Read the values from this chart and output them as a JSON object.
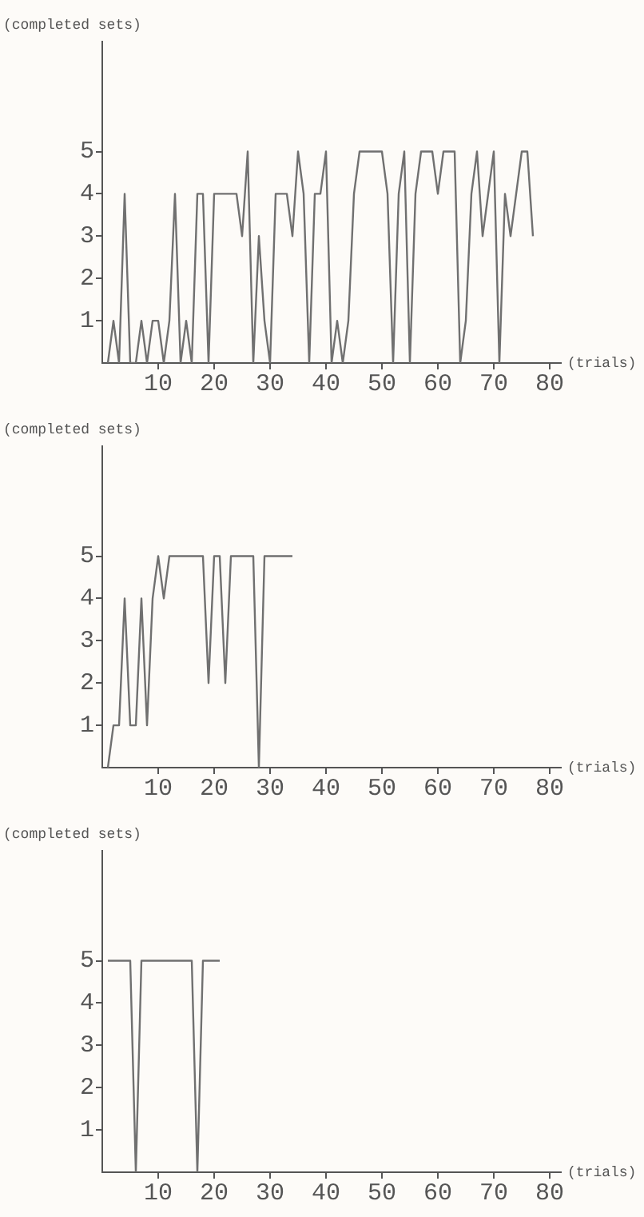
{
  "chart_data": [
    {
      "type": "line",
      "xlabel": "(trials)",
      "ylabel": "(completed sets)",
      "x": [
        1,
        2,
        3,
        4,
        5,
        6,
        7,
        8,
        9,
        10,
        11,
        12,
        13,
        14,
        15,
        16,
        17,
        18,
        19,
        20,
        21,
        22,
        23,
        24,
        25,
        26,
        27,
        28,
        29,
        30,
        31,
        32,
        33,
        34,
        35,
        36,
        37,
        38,
        39,
        40,
        41,
        42,
        43,
        44,
        45,
        46,
        47,
        48,
        49,
        50,
        51,
        52,
        53,
        54,
        55,
        56,
        57,
        58,
        59,
        60,
        61,
        62,
        63,
        64,
        65,
        66,
        67,
        68,
        69,
        70,
        71,
        72,
        73,
        74,
        75,
        76,
        77
      ],
      "series": [
        {
          "color": "#707070",
          "values": [
            0,
            1,
            0,
            4,
            0,
            0,
            1,
            0,
            1,
            1,
            0,
            1,
            4,
            0,
            1,
            0,
            4,
            4,
            0,
            4,
            4,
            4,
            4,
            4,
            3,
            5,
            0,
            3,
            1,
            0,
            4,
            4,
            4,
            3,
            5,
            4,
            0,
            4,
            4,
            5,
            0,
            1,
            0,
            1,
            4,
            5,
            5,
            5,
            5,
            5,
            4,
            0,
            4,
            5,
            0,
            4,
            5,
            5,
            5,
            4,
            5,
            5,
            5,
            0,
            1,
            4,
            5,
            3,
            4,
            5,
            0,
            4,
            3,
            4,
            5,
            5,
            3
          ]
        }
      ],
      "xlim": [
        0,
        82
      ],
      "ylim": [
        0,
        7.6
      ],
      "xticks": [
        10,
        20,
        30,
        40,
        50,
        60,
        70,
        80
      ],
      "yticks": [
        1,
        2,
        3,
        4,
        5
      ],
      "grid": false,
      "legend": false,
      "marker": "none",
      "line_style": "solid"
    },
    {
      "type": "line",
      "xlabel": "(trials)",
      "ylabel": "(completed sets)",
      "x": [
        1,
        2,
        3,
        4,
        5,
        6,
        7,
        8,
        9,
        10,
        11,
        12,
        13,
        14,
        15,
        16,
        17,
        18,
        19,
        20,
        21,
        22,
        23,
        24,
        25,
        26,
        27,
        28,
        29,
        30,
        31,
        32,
        33,
        34
      ],
      "series": [
        {
          "color": "#707070",
          "values": [
            0,
            1,
            1,
            4,
            1,
            1,
            4,
            1,
            4,
            5,
            4,
            5,
            5,
            5,
            5,
            5,
            5,
            5,
            2,
            5,
            5,
            2,
            5,
            5,
            5,
            5,
            5,
            0,
            5,
            5,
            5,
            5,
            5,
            5
          ]
        }
      ],
      "xlim": [
        0,
        82
      ],
      "ylim": [
        0,
        7.6
      ],
      "xticks": [
        10,
        20,
        30,
        40,
        50,
        60,
        70,
        80
      ],
      "yticks": [
        1,
        2,
        3,
        4,
        5
      ],
      "grid": false,
      "legend": false,
      "marker": "none",
      "line_style": "solid"
    },
    {
      "type": "line",
      "xlabel": "(trials)",
      "ylabel": "(completed sets)",
      "x": [
        1,
        2,
        3,
        4,
        5,
        6,
        7,
        8,
        9,
        10,
        11,
        12,
        13,
        14,
        15,
        16,
        17,
        18,
        19,
        20,
        21
      ],
      "series": [
        {
          "color": "#707070",
          "values": [
            5,
            5,
            5,
            5,
            5,
            0,
            5,
            5,
            5,
            5,
            5,
            5,
            5,
            5,
            5,
            5,
            0,
            5,
            5,
            5,
            5
          ]
        }
      ],
      "xlim": [
        0,
        82
      ],
      "ylim": [
        0,
        7.6
      ],
      "xticks": [
        10,
        20,
        30,
        40,
        50,
        60,
        70,
        80
      ],
      "yticks": [
        1,
        2,
        3,
        4,
        5
      ],
      "grid": false,
      "legend": false,
      "marker": "none",
      "line_style": "solid"
    }
  ]
}
